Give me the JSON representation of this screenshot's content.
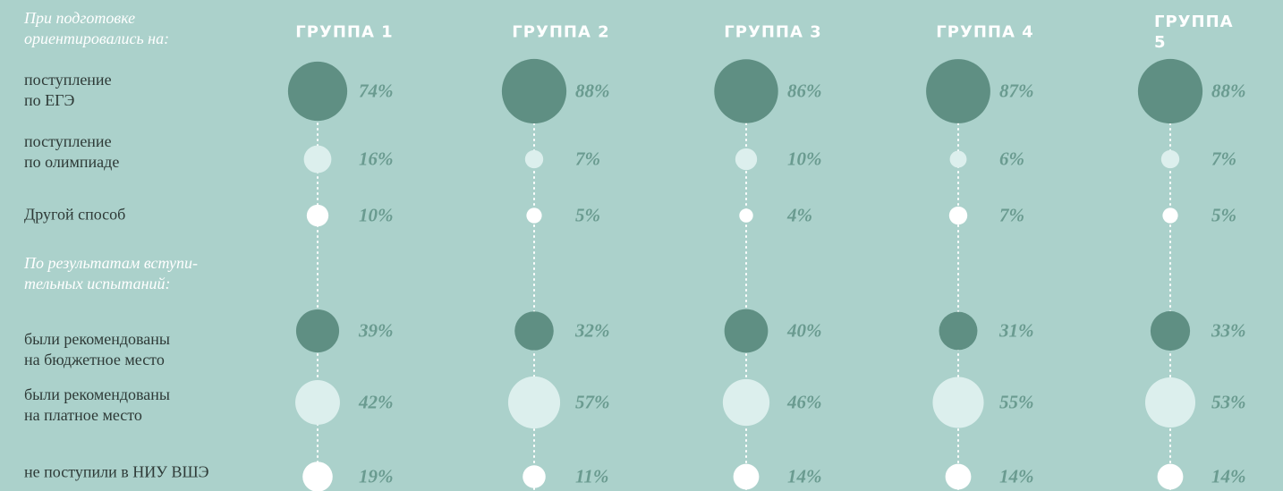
{
  "chart_data": {
    "type": "bubble",
    "section_titles": [
      "При подготовке\nориентировались на:",
      "По результатам вступи-\nтельных испытаний:"
    ],
    "categories": [
      "ГРУППА 1",
      "ГРУППА 2",
      "ГРУППА 3",
      "ГРУППА 4",
      "ГРУППА 5"
    ],
    "series": [
      {
        "name": "поступление\nпо ЕГЭ",
        "color": "#5f8f83",
        "values": [
          74,
          88,
          86,
          87,
          88
        ],
        "value_labels": [
          "74%",
          "88%",
          "86%",
          "87%",
          "88%"
        ]
      },
      {
        "name": "поступление\nпо олимпиаде",
        "color": "#dcefed",
        "values": [
          16,
          7,
          10,
          6,
          7
        ],
        "value_labels": [
          "16%",
          "7%",
          "10%",
          "6%",
          "7%"
        ]
      },
      {
        "name": "Другой способ",
        "color": "#ffffff",
        "values": [
          10,
          5,
          4,
          7,
          5
        ],
        "value_labels": [
          "10%",
          "5%",
          "4%",
          "7%",
          "5%"
        ]
      },
      {
        "name": "были рекомендованы\nна бюджетное место",
        "color": "#5f8f83",
        "values": [
          39,
          32,
          40,
          31,
          33
        ],
        "value_labels": [
          "39%",
          "32%",
          "40%",
          "31%",
          "33%"
        ]
      },
      {
        "name": "были рекомендованы\nна платное место",
        "color": "#dcefed",
        "values": [
          42,
          57,
          46,
          55,
          53
        ],
        "value_labels": [
          "42%",
          "57%",
          "46%",
          "55%",
          "53%"
        ]
      },
      {
        "name": "не поступили в НИУ ВШЭ",
        "color": "#ffffff",
        "values": [
          19,
          11,
          14,
          14,
          14
        ],
        "value_labels": [
          "19%",
          "11%",
          "14%",
          "14%",
          "14%"
        ]
      }
    ]
  }
}
